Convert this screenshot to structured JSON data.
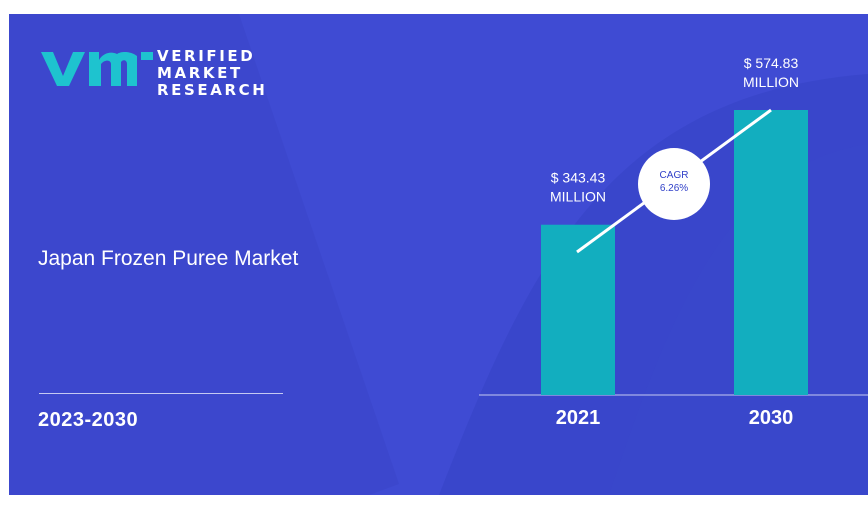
{
  "brand": {
    "line1": "VERIFIED",
    "line2": "MARKET",
    "line3": "RESEARCH"
  },
  "title": "Japan Frozen Puree Market",
  "period": "2023-2030",
  "colors": {
    "background": "#3f4bd3",
    "bar": "#12aebf",
    "logo": "#1ec3cf",
    "text": "#ffffff"
  },
  "chart_data": {
    "type": "bar",
    "categories": [
      "2021",
      "2030"
    ],
    "values": [
      343.43,
      574.83
    ],
    "data_labels": [
      [
        "$ 343.43",
        "MILLION"
      ],
      [
        "$ 574.83",
        "MILLION"
      ]
    ],
    "annotation": [
      "CAGR",
      "6.26%"
    ],
    "unit": "MILLION",
    "grid": false
  }
}
